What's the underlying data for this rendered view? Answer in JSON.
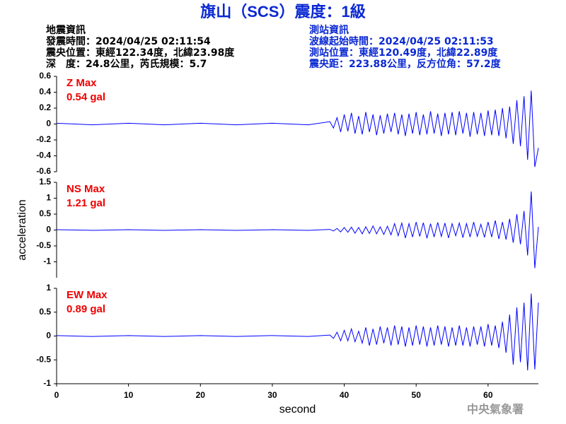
{
  "header": {
    "title": "旗山（SCS）震度：1級",
    "left": [
      "地震資訊",
      "發震時間：2024/04/25 02:11:54",
      "震央位置：東經122.34度，北緯23.98度",
      "深　度：24.8公里，芮氏規模：5.7"
    ],
    "right": [
      "測站資訊",
      "波線起始時間：2024/04/25 02:11:53",
      "測站位置：東經120.49度，北緯22.89度",
      "震央距：223.88公里，反方位角：57.2度"
    ]
  },
  "footer": "中央氣象署",
  "chart_data": [
    {
      "type": "line",
      "annotation": [
        "Z Max",
        "0.54 gal"
      ],
      "annotation_color": "#ee0000",
      "x": [
        0,
        5,
        10,
        15,
        20,
        25,
        30,
        35,
        38,
        38.5,
        39,
        39.5,
        40,
        40.5,
        41,
        41.5,
        42,
        42.5,
        43,
        43.5,
        44,
        44.5,
        45,
        45.5,
        46,
        46.5,
        47,
        47.5,
        48,
        48.5,
        49,
        49.5,
        50,
        50.5,
        51,
        51.5,
        52,
        52.5,
        53,
        53.5,
        54,
        54.5,
        55,
        55.5,
        56,
        56.5,
        57,
        57.5,
        58,
        58.5,
        59,
        59.5,
        60,
        60.5,
        61,
        61.5,
        62,
        62.5,
        63,
        63.5,
        64,
        64.5,
        65,
        65.5,
        66,
        66.5,
        67
      ],
      "series": [
        {
          "color": "#0000ff",
          "values": [
            0.01,
            -0.01,
            0.01,
            -0.01,
            0.01,
            -0.01,
            0.01,
            -0.01,
            0.03,
            -0.05,
            0.08,
            -0.1,
            0.12,
            -0.09,
            0.14,
            -0.12,
            0.1,
            -0.13,
            0.15,
            -0.1,
            0.12,
            -0.14,
            0.11,
            -0.12,
            0.13,
            -0.1,
            0.14,
            -0.13,
            0.12,
            -0.15,
            0.13,
            -0.12,
            0.15,
            -0.14,
            0.12,
            -0.13,
            0.16,
            -0.12,
            0.13,
            -0.15,
            0.14,
            -0.13,
            0.15,
            -0.14,
            0.16,
            -0.12,
            0.14,
            -0.16,
            0.15,
            -0.13,
            0.14,
            -0.15,
            0.17,
            -0.14,
            0.18,
            -0.15,
            0.2,
            -0.18,
            0.22,
            -0.25,
            0.3,
            -0.28,
            0.35,
            -0.45,
            0.42,
            -0.54,
            -0.3
          ]
        }
      ],
      "xlim": [
        0,
        67
      ],
      "ylim": [
        -0.6,
        0.6
      ],
      "yticks": [
        -0.6,
        -0.4,
        -0.2,
        0,
        0.2,
        0.4,
        0.6
      ]
    },
    {
      "type": "line",
      "annotation": [
        "NS Max",
        "1.21 gal"
      ],
      "annotation_color": "#ee0000",
      "ylabel": "acceleration",
      "x": [
        0,
        5,
        10,
        15,
        20,
        25,
        30,
        35,
        38,
        38.5,
        39,
        39.5,
        40,
        40.5,
        41,
        41.5,
        42,
        42.5,
        43,
        43.5,
        44,
        44.5,
        45,
        45.5,
        46,
        46.5,
        47,
        47.5,
        48,
        48.5,
        49,
        49.5,
        50,
        50.5,
        51,
        51.5,
        52,
        52.5,
        53,
        53.5,
        54,
        54.5,
        55,
        55.5,
        56,
        56.5,
        57,
        57.5,
        58,
        58.5,
        59,
        59.5,
        60,
        60.5,
        61,
        61.5,
        62,
        62.5,
        63,
        63.5,
        64,
        64.5,
        65,
        65.5,
        66,
        66.5,
        67
      ],
      "series": [
        {
          "color": "#0000ff",
          "values": [
            0.01,
            -0.01,
            0.01,
            -0.01,
            0.01,
            -0.01,
            0.01,
            -0.01,
            0.02,
            -0.03,
            0.05,
            -0.06,
            0.08,
            -0.07,
            0.09,
            -0.1,
            0.08,
            -0.12,
            0.1,
            -0.11,
            0.13,
            -0.12,
            0.1,
            -0.14,
            0.12,
            -0.15,
            0.2,
            -0.18,
            0.22,
            -0.25,
            0.2,
            -0.22,
            0.25,
            -0.2,
            0.23,
            -0.26,
            0.2,
            -0.22,
            0.24,
            -0.2,
            0.22,
            -0.25,
            0.2,
            -0.18,
            0.22,
            -0.24,
            0.2,
            -0.22,
            0.25,
            -0.2,
            0.18,
            -0.23,
            0.25,
            -0.22,
            0.3,
            -0.28,
            0.25,
            -0.3,
            0.35,
            -0.4,
            0.5,
            -0.45,
            0.6,
            -0.8,
            1.21,
            -1.2,
            0.1
          ]
        }
      ],
      "xlim": [
        0,
        67
      ],
      "ylim": [
        -1.5,
        1.5
      ],
      "yticks": [
        -1,
        -0.5,
        0,
        0.5,
        1,
        1.5
      ]
    },
    {
      "type": "line",
      "annotation": [
        "EW Max",
        "0.89 gal"
      ],
      "annotation_color": "#ee0000",
      "xlabel": "second",
      "x": [
        0,
        5,
        10,
        15,
        20,
        25,
        30,
        35,
        38,
        38.5,
        39,
        39.5,
        40,
        40.5,
        41,
        41.5,
        42,
        42.5,
        43,
        43.5,
        44,
        44.5,
        45,
        45.5,
        46,
        46.5,
        47,
        47.5,
        48,
        48.5,
        49,
        49.5,
        50,
        50.5,
        51,
        51.5,
        52,
        52.5,
        53,
        53.5,
        54,
        54.5,
        55,
        55.5,
        56,
        56.5,
        57,
        57.5,
        58,
        58.5,
        59,
        59.5,
        60,
        60.5,
        61,
        61.5,
        62,
        62.5,
        63,
        63.5,
        64,
        64.5,
        65,
        65.5,
        66,
        66.5,
        67
      ],
      "series": [
        {
          "color": "#0000ff",
          "values": [
            0.01,
            -0.01,
            0.01,
            -0.01,
            0.01,
            -0.01,
            0.01,
            -0.01,
            0.02,
            -0.05,
            0.08,
            -0.1,
            0.12,
            -0.1,
            0.15,
            -0.12,
            0.1,
            -0.15,
            0.18,
            -0.2,
            0.15,
            -0.18,
            0.2,
            -0.15,
            0.18,
            -0.2,
            0.22,
            -0.18,
            0.2,
            -0.22,
            0.18,
            -0.2,
            0.22,
            -0.18,
            0.2,
            -0.22,
            0.18,
            -0.2,
            0.22,
            -0.18,
            0.2,
            -0.22,
            0.18,
            -0.2,
            0.22,
            -0.2,
            0.18,
            -0.22,
            0.2,
            -0.18,
            0.2,
            -0.22,
            0.25,
            -0.2,
            0.22,
            -0.25,
            0.3,
            -0.35,
            0.45,
            -0.6,
            0.6,
            -0.55,
            0.7,
            -0.72,
            0.89,
            -0.7,
            0.7
          ]
        }
      ],
      "xlim": [
        0,
        67
      ],
      "ylim": [
        -1,
        1
      ],
      "yticks": [
        -1,
        -0.5,
        0,
        0.5,
        1
      ],
      "xticks": [
        0,
        10,
        20,
        30,
        40,
        50,
        60
      ]
    }
  ]
}
